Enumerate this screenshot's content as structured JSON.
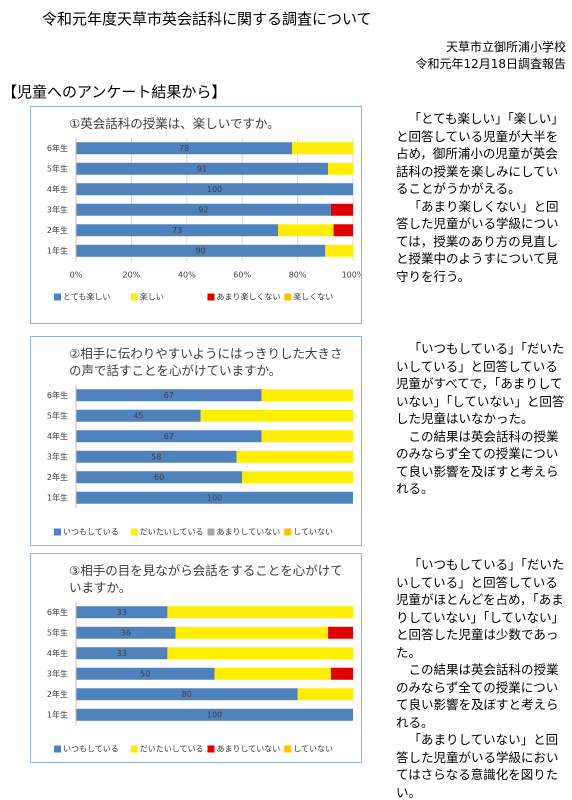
{
  "header": {
    "title": "令和元年度天草市英会話科に関する調査について",
    "school": "天草市立御所浦小学校",
    "date": "令和元年12月18日調査報告"
  },
  "section_title": "【児童へのアンケート結果から】",
  "chart_data": [
    {
      "type": "bar",
      "orientation": "horizontal",
      "stacked": true,
      "title": "①英会話科の授業は、楽しいですか。",
      "categories": [
        "6年生",
        "5年生",
        "4年生",
        "3年生",
        "2年生",
        "1年生"
      ],
      "series": [
        {
          "name": "とても楽しい",
          "color": "#4f81bd",
          "values": [
            78,
            91,
            100,
            92,
            73,
            90
          ]
        },
        {
          "name": "楽しい",
          "color": "#ffee00",
          "values": [
            22,
            9,
            0,
            0,
            20,
            10
          ]
        },
        {
          "name": "あまり楽しくない",
          "color": "#e00000",
          "values": [
            0,
            0,
            0,
            8,
            7,
            0
          ]
        },
        {
          "name": "楽しくない",
          "color": "#ffc000",
          "values": [
            0,
            0,
            0,
            0,
            0,
            0
          ]
        }
      ],
      "xlim": [
        0,
        100
      ],
      "xticks": [
        {
          "value": 0,
          "label": "0%"
        },
        {
          "value": 20,
          "label": "20%"
        },
        {
          "value": 40,
          "label": "40%"
        },
        {
          "value": 60,
          "label": "60%"
        },
        {
          "value": 80,
          "label": "80%"
        },
        {
          "value": 100,
          "label": "100%"
        }
      ],
      "grid": true,
      "legend": "bottom"
    },
    {
      "type": "bar",
      "orientation": "horizontal",
      "stacked": true,
      "title": "②相手に伝わりやすいようにはっきりした大きさの声で話すことを心がけていますか。",
      "categories": [
        "6年生",
        "5年生",
        "4年生",
        "3年生",
        "2年生",
        "1年生"
      ],
      "series": [
        {
          "name": "いつもしている",
          "color": "#4f81bd",
          "values": [
            67,
            45,
            67,
            58,
            60,
            100
          ]
        },
        {
          "name": "だいたいしている",
          "color": "#ffee00",
          "values": [
            33,
            55,
            33,
            42,
            40,
            0
          ]
        },
        {
          "name": "あまりしていない",
          "color": "#a6a6a6",
          "values": [
            0,
            0,
            0,
            0,
            0,
            0
          ]
        },
        {
          "name": "していない",
          "color": "#ffc000",
          "values": [
            0,
            0,
            0,
            0,
            0,
            0
          ]
        }
      ],
      "xlim": [
        0,
        100
      ],
      "grid": false,
      "legend": "bottom"
    },
    {
      "type": "bar",
      "orientation": "horizontal",
      "stacked": true,
      "title": "③相手の目を見ながら会話をすることを心がけていますか。",
      "categories": [
        "6年生",
        "5年生",
        "4年生",
        "3年生",
        "2年生",
        "1年生"
      ],
      "series": [
        {
          "name": "いつもしている",
          "color": "#4f81bd",
          "values": [
            33,
            36,
            33,
            50,
            80,
            100
          ]
        },
        {
          "name": "だいたいしている",
          "color": "#ffee00",
          "values": [
            67,
            55,
            67,
            42,
            20,
            0
          ]
        },
        {
          "name": "あまりしていない",
          "color": "#e00000",
          "values": [
            0,
            9,
            0,
            8,
            0,
            0
          ]
        },
        {
          "name": "していない",
          "color": "#ffc000",
          "values": [
            0,
            0,
            0,
            0,
            0,
            0
          ]
        }
      ],
      "xlim": [
        0,
        100
      ],
      "grid": false,
      "legend": "bottom"
    }
  ],
  "comments": [
    [
      "「とても楽しい」「楽しい」と回答している児童が大半を占め，御所浦小の児童が英会話科の授業を楽しみにしていることがうかがえる。",
      "「あまり楽しくない」と回答した児童がいる学級については，授業のあり方の見直しと授業中のようすについて見守りを行う。"
    ],
    [
      "「いつもしている」「だいたいしている」と回答している児童がすべてで，「あまりしていない」「していない」と回答した児童はいなかった。",
      "この結果は英会話科の授業のみならず全ての授業について良い影響を及ぼすと考えられる。"
    ],
    [
      "「いつもしている」「だいたいしている」と回答している児童がほとんどを占め，「あまりしていない」「していない」と回答した児童は少数であった。",
      "この結果は英会話科の授業のみならず全ての授業について良い影響を及ぼすと考えられる。",
      "「あまりしていない」と回答した児童がいる学級においてはさらなる意識化を図りたい。"
    ]
  ]
}
